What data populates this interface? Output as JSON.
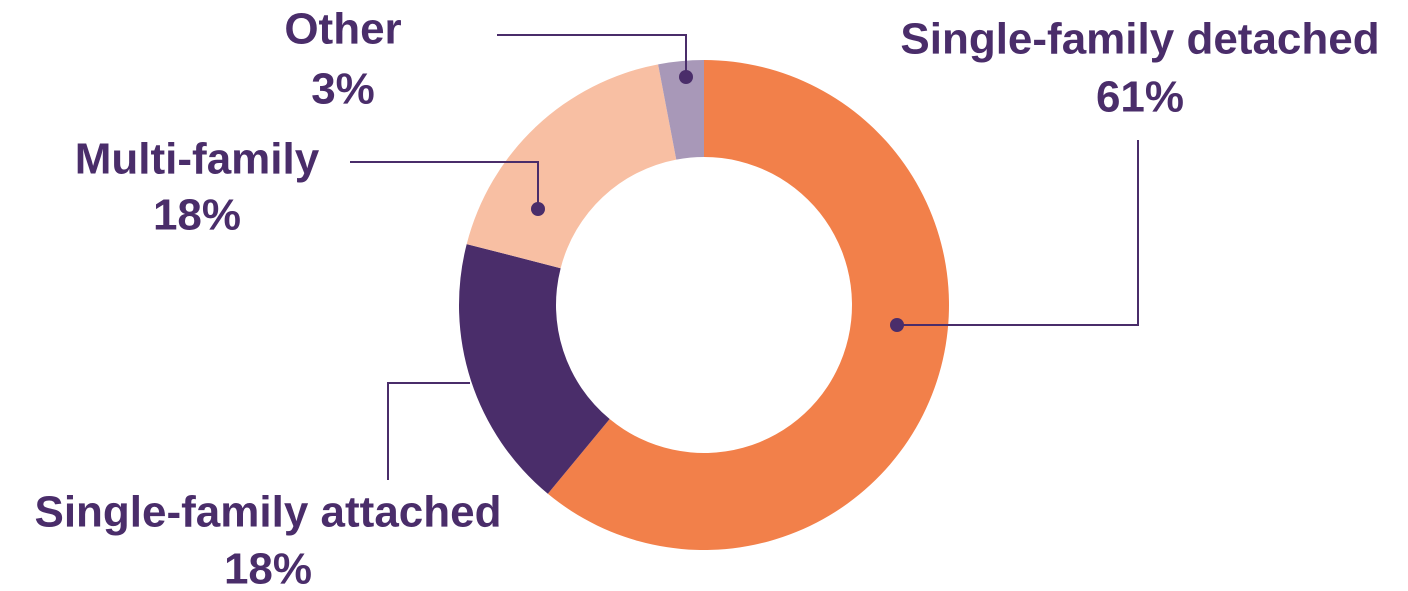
{
  "chart_data": {
    "type": "donut",
    "categories": [
      "Single-family detached",
      "Single-family attached",
      "Multi-family",
      "Other"
    ],
    "values": [
      61,
      18,
      18,
      3
    ],
    "value_labels": [
      "61%",
      "18%",
      "18%",
      "3%"
    ],
    "colors": [
      "#f2804a",
      "#4a2d6a",
      "#f8bfa3",
      "#a898b8"
    ]
  }
}
